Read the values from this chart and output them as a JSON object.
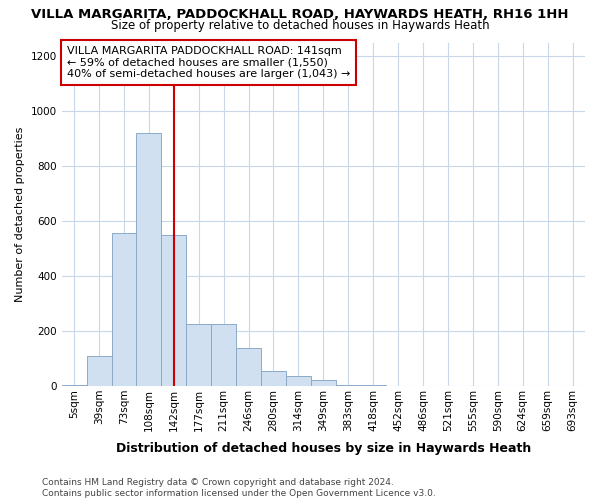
{
  "title1": "VILLA MARGARITA, PADDOCKHALL ROAD, HAYWARDS HEATH, RH16 1HH",
  "title2": "Size of property relative to detached houses in Haywards Heath",
  "xlabel": "Distribution of detached houses by size in Haywards Heath",
  "ylabel": "Number of detached properties",
  "footnote": "Contains HM Land Registry data © Crown copyright and database right 2024.\nContains public sector information licensed under the Open Government Licence v3.0.",
  "bar_labels": [
    "5sqm",
    "39sqm",
    "73sqm",
    "108sqm",
    "142sqm",
    "177sqm",
    "211sqm",
    "246sqm",
    "280sqm",
    "314sqm",
    "349sqm",
    "383sqm",
    "418sqm",
    "452sqm",
    "486sqm",
    "521sqm",
    "555sqm",
    "590sqm",
    "624sqm",
    "659sqm",
    "693sqm"
  ],
  "bar_values": [
    5,
    110,
    555,
    920,
    550,
    225,
    225,
    140,
    55,
    35,
    20,
    5,
    5,
    0,
    0,
    0,
    0,
    0,
    0,
    0,
    0
  ],
  "bar_color": "#d0e0f0",
  "bar_edge_color": "#8aaac8",
  "highlight_bar_index": 4,
  "highlight_line_color": "#cc0000",
  "ylim": [
    0,
    1250
  ],
  "yticks": [
    0,
    200,
    400,
    600,
    800,
    1000,
    1200
  ],
  "annotation_text": "VILLA MARGARITA PADDOCKHALL ROAD: 141sqm\n← 59% of detached houses are smaller (1,550)\n40% of semi-detached houses are larger (1,043) →",
  "annotation_box_color": "#ffffff",
  "annotation_box_edge_color": "#cc0000",
  "background_color": "#ffffff",
  "grid_color": "#c8d8e8",
  "title1_fontsize": 9.5,
  "title2_fontsize": 8.5,
  "xlabel_fontsize": 9,
  "ylabel_fontsize": 8,
  "tick_fontsize": 7.5,
  "annot_fontsize": 8,
  "footnote_fontsize": 6.5
}
